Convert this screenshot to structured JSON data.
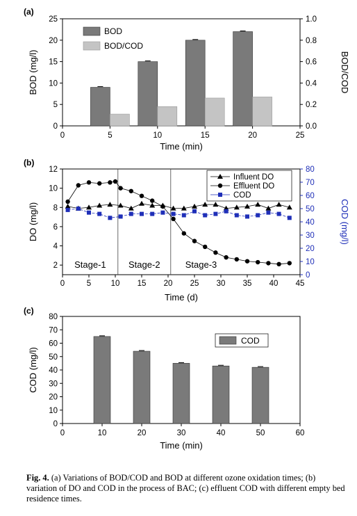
{
  "chart_data": [
    {
      "panel": "(a)",
      "type": "bar",
      "xlabel": "Time (min)",
      "ylabel": "BOD (mg/l)",
      "y2label": "BOD/COD",
      "xlim": [
        0,
        25
      ],
      "xticks": [
        0,
        5,
        10,
        15,
        20,
        25
      ],
      "ylim": [
        0,
        25
      ],
      "yticks": [
        0,
        5,
        10,
        15,
        20,
        25
      ],
      "y2lim": [
        0,
        1.0
      ],
      "y2ticks": [
        "0.0",
        "0.2",
        "0.4",
        "0.6",
        "0.8",
        "1.0"
      ],
      "categories": [
        5,
        10,
        15,
        20
      ],
      "series": [
        {
          "name": "BOD",
          "axis": "left",
          "color": "#7a7a7a",
          "values": [
            9.0,
            15.0,
            20.0,
            22.0
          ]
        },
        {
          "name": "BOD/COD",
          "axis": "right",
          "color": "#c4c4c4",
          "values": [
            0.11,
            0.18,
            0.26,
            0.27
          ]
        }
      ],
      "legend": "top-left"
    },
    {
      "panel": "(b)",
      "type": "line",
      "xlabel": "Time (d)",
      "ylabel": "DO (mg/l)",
      "y2label": "COD (mg/l)",
      "xlim": [
        0,
        45
      ],
      "xticks": [
        0,
        5,
        10,
        15,
        20,
        25,
        30,
        35,
        40,
        45
      ],
      "ylim": [
        1,
        12
      ],
      "yticks": [
        2,
        4,
        6,
        8,
        10,
        12
      ],
      "y2lim": [
        0,
        80
      ],
      "y2ticks": [
        0,
        10,
        20,
        30,
        40,
        50,
        60,
        70,
        80
      ],
      "stage_boundaries": [
        10.5,
        20.5
      ],
      "stage_labels": [
        "Stage-1",
        "Stage-2",
        "Stage-3"
      ],
      "series": [
        {
          "name": "Influent DO",
          "marker": "triangle",
          "axis": "left",
          "x": [
            1,
            3,
            5,
            7,
            9,
            11,
            13,
            15,
            17,
            19,
            21,
            23,
            25,
            27,
            29,
            31,
            33,
            35,
            37,
            39,
            41,
            43
          ],
          "y": [
            8.1,
            7.9,
            8.0,
            8.2,
            8.3,
            8.2,
            7.9,
            8.4,
            8.2,
            8.2,
            7.9,
            7.9,
            8.1,
            8.3,
            8.3,
            7.9,
            8.0,
            8.1,
            8.3,
            7.9,
            8.3,
            8.0
          ]
        },
        {
          "name": "Effluent DO",
          "marker": "circle",
          "axis": "left",
          "x": [
            1,
            3,
            5,
            7,
            9,
            10,
            11,
            13,
            15,
            17,
            19,
            21,
            23,
            25,
            27,
            29,
            31,
            33,
            35,
            37,
            39,
            41,
            43
          ],
          "y": [
            8.6,
            10.3,
            10.6,
            10.5,
            10.6,
            10.7,
            10.0,
            9.7,
            9.2,
            8.7,
            8.1,
            6.8,
            5.3,
            4.5,
            3.9,
            3.3,
            2.8,
            2.6,
            2.4,
            2.3,
            2.2,
            2.1,
            2.2
          ]
        },
        {
          "name": "COD",
          "marker": "square",
          "axis": "right",
          "color": "#1f2fb8",
          "x": [
            1,
            3,
            5,
            7,
            9,
            11,
            13,
            15,
            17,
            19,
            21,
            23,
            25,
            27,
            29,
            31,
            33,
            35,
            37,
            39,
            41,
            43
          ],
          "y": [
            49,
            50,
            47,
            46,
            43,
            44,
            46,
            46,
            46,
            47,
            46,
            45,
            48,
            45,
            46,
            48,
            45,
            44,
            45,
            47,
            46,
            43
          ]
        }
      ],
      "legend": "top-right"
    },
    {
      "panel": "(c)",
      "type": "bar",
      "xlabel": "Time (min)",
      "ylabel": "COD (mg/l)",
      "xlim": [
        0,
        60
      ],
      "xticks": [
        0,
        10,
        20,
        30,
        40,
        50,
        60
      ],
      "ylim": [
        0,
        80
      ],
      "yticks": [
        0,
        10,
        20,
        30,
        40,
        50,
        60,
        70,
        80
      ],
      "categories": [
        10,
        20,
        30,
        40,
        50
      ],
      "series": [
        {
          "name": "COD",
          "color": "#7a7a7a",
          "values": [
            65,
            54,
            45,
            43,
            42
          ]
        }
      ],
      "legend": "top-right"
    }
  ],
  "caption": {
    "label": "Fig. 4.",
    "text": "(a) Variations of BOD/COD and BOD at different ozone oxidation times; (b) variation of DO and COD in the process of BAC; (c) effluent COD with different empty bed residence times."
  }
}
